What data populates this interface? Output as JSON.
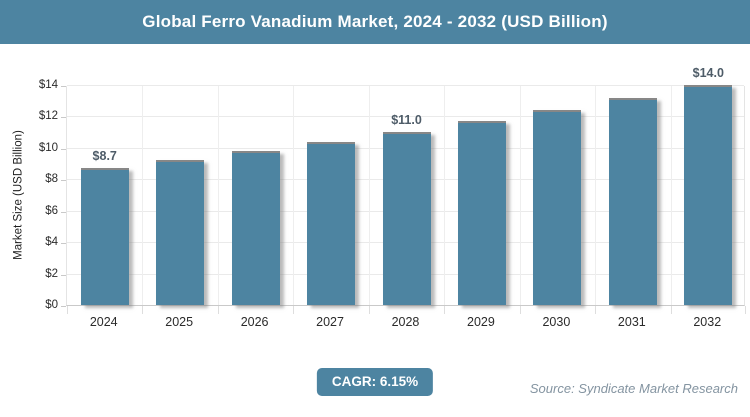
{
  "header": {
    "title": "Global Ferro Vanadium Market, 2024 - 2032 (USD Billion)"
  },
  "chart_data": {
    "type": "bar",
    "title": "Global Ferro Vanadium Market, 2024 - 2032 (USD Billion)",
    "categories": [
      "2024",
      "2025",
      "2026",
      "2027",
      "2028",
      "2029",
      "2030",
      "2031",
      "2032"
    ],
    "values": [
      8.7,
      9.2,
      9.8,
      10.4,
      11.0,
      11.7,
      12.4,
      13.2,
      14.0
    ],
    "bar_labels": [
      "$8.7",
      "",
      "",
      "",
      "$11.0",
      "",
      "",
      "",
      "$14.0"
    ],
    "xlabel": "",
    "ylabel": "Market Size (USD Billion)",
    "ylim": [
      0,
      14
    ],
    "yticks": [
      0,
      2,
      4,
      6,
      8,
      10,
      12,
      14
    ],
    "ytick_labels": [
      "$0",
      "$2",
      "$4",
      "$6",
      "$8",
      "$10",
      "$12",
      "$14"
    ],
    "grid": true,
    "legend": false,
    "bar_color": "#4d84a1"
  },
  "footer": {
    "cagr_label": "CAGR: 6.15%",
    "source": "Source: Syndicate Market Research"
  },
  "colors": {
    "accent": "#4d84a1",
    "grid": "#eaeaea",
    "axis": "#c9c9c9",
    "value_label": "#4e5c68",
    "source_text": "#8494a1",
    "title_text": "#ffffff"
  }
}
